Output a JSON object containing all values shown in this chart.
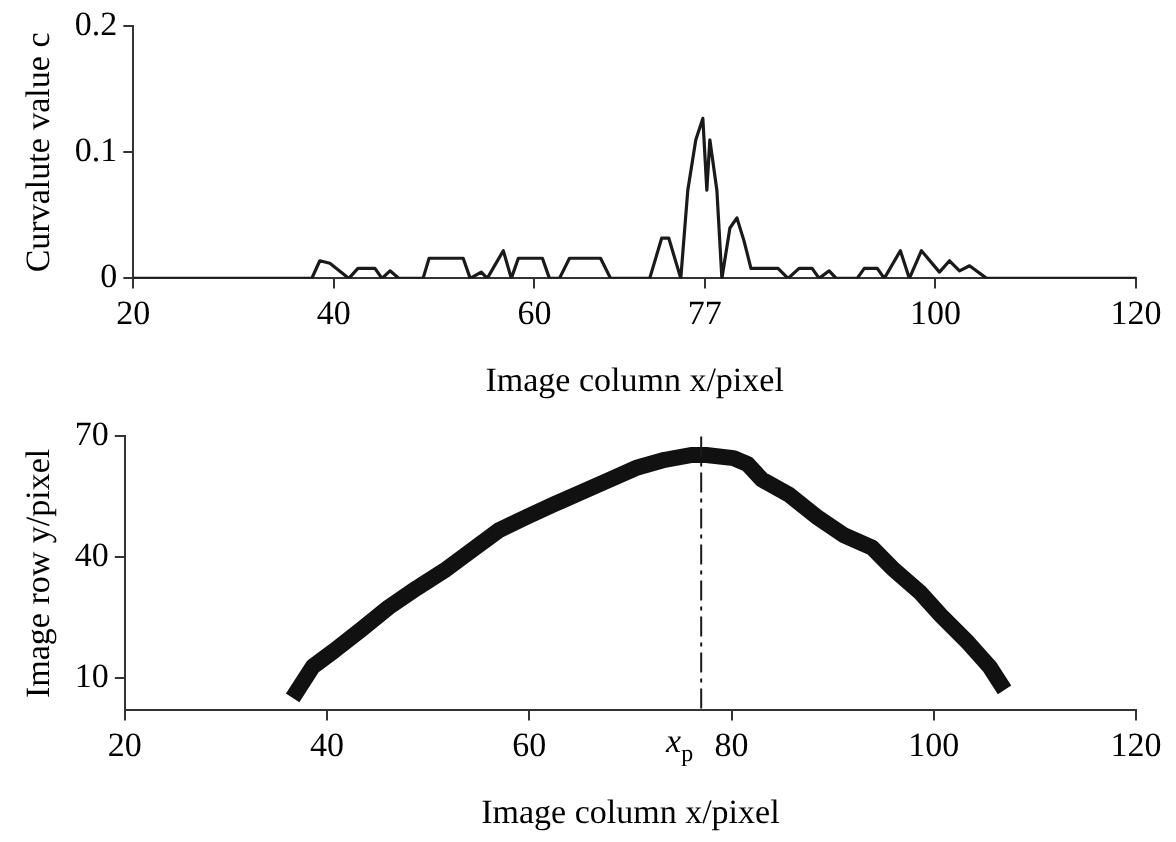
{
  "chart_data": [
    {
      "type": "line",
      "xlabel": "Image column x/pixel",
      "ylabel": "Curvalute value c",
      "xlim": [
        20,
        120
      ],
      "xticks": [
        20,
        40,
        60,
        77,
        100,
        120
      ],
      "ylim": [
        0,
        0.2
      ],
      "yticks": [
        0,
        0.1,
        0.2
      ],
      "grid": false,
      "legend": false,
      "marker": "none",
      "series": [
        {
          "color": "#1a1a1a",
          "x": [
            20,
            37.8,
            38.6,
            39.6,
            40.7,
            41.5,
            42.4,
            44.1,
            44.8,
            45.6,
            46.5,
            48.9,
            49.5,
            52.9,
            53.6,
            54.7,
            55.3,
            56.9,
            57.7,
            58.4,
            60.8,
            61.5,
            62.5,
            63.5,
            66.6,
            67.6,
            71.5,
            72.7,
            73.4,
            74.6,
            75.3,
            76.1,
            76.8,
            77.2,
            77.5,
            78.2,
            78.7,
            79.5,
            80.2,
            80.9,
            81.6,
            84.3,
            85.3,
            86.4,
            87.7,
            88.4,
            89.4,
            90.1,
            92.2,
            92.9,
            94.2,
            94.9,
            96.5,
            97.4,
            98.6,
            100.4,
            101.4,
            102.4,
            103.4,
            105.1,
            120
          ],
          "values": [
            0,
            0,
            0.014,
            0.012,
            0.005,
            0,
            0.008,
            0.008,
            0,
            0.006,
            0,
            0,
            0.016,
            0.016,
            0,
            0.005,
            0,
            0.022,
            0,
            0.016,
            0.016,
            0,
            0,
            0.016,
            0.016,
            0,
            0,
            0.032,
            0.032,
            0,
            0.07,
            0.11,
            0.127,
            0.07,
            0.11,
            0.07,
            0,
            0.04,
            0.048,
            0.03,
            0.008,
            0.008,
            0,
            0.008,
            0.008,
            0,
            0.006,
            0,
            0,
            0.008,
            0.008,
            0,
            0.022,
            0,
            0.022,
            0.005,
            0.014,
            0.006,
            0.01,
            0,
            0
          ]
        }
      ]
    },
    {
      "type": "line",
      "xlabel": "Image column x/pixel",
      "ylabel": "Image row y/pixel",
      "xlim": [
        20,
        120
      ],
      "xticks": [
        20,
        40,
        60,
        80,
        100,
        120
      ],
      "ylim": [
        2,
        70
      ],
      "yticks": [
        10,
        40,
        70
      ],
      "grid": false,
      "legend": false,
      "marker": "none",
      "ref_lines": [
        {
          "axis": "x",
          "value": 77,
          "label": "x$_{p}$",
          "line_style": "dashdot",
          "color": "#1a1a1a"
        }
      ],
      "series": [
        {
          "color": "#111111",
          "x": [
            36.6,
            38.6,
            40.7,
            43.4,
            46.1,
            48.9,
            51.6,
            54.3,
            57.0,
            59.8,
            62.5,
            65.2,
            68.0,
            70.7,
            73.4,
            76.1,
            77.5,
            80.2,
            81.6,
            83.0,
            85.7,
            88.4,
            91.1,
            93.9,
            95.9,
            98.6,
            100.7,
            103.4,
            105.5,
            107.0
          ],
          "values": [
            5.1,
            12.9,
            16.8,
            22.1,
            27.6,
            32.4,
            36.7,
            41.7,
            46.7,
            50.1,
            53.2,
            56.2,
            59.3,
            62.3,
            64.2,
            65.4,
            65.4,
            64.6,
            63.1,
            59.3,
            55.5,
            50.1,
            45.5,
            42.4,
            37.3,
            31.4,
            25.6,
            18.8,
            12.9,
            7.1
          ]
        }
      ]
    }
  ]
}
